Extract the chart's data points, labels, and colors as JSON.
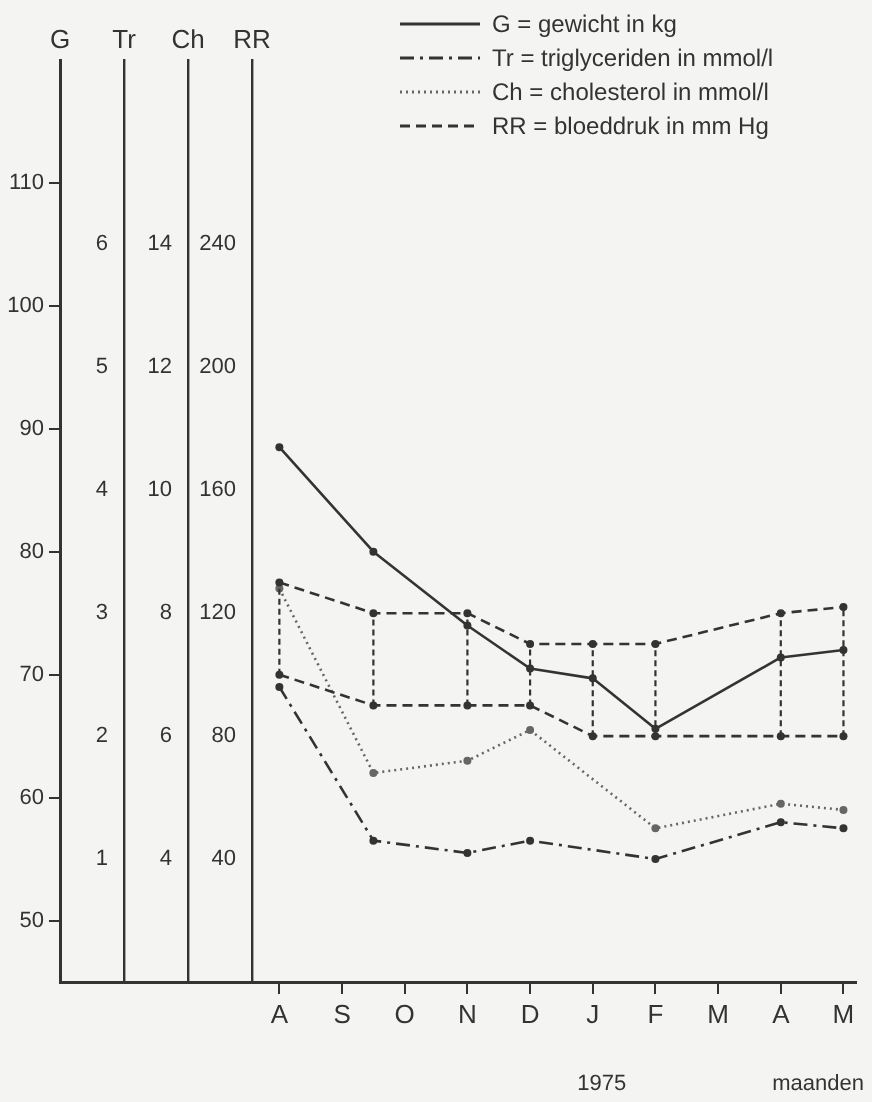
{
  "chart_data": [
    {
      "type": "line",
      "ylabel": "G",
      "y2label": "Tr",
      "y3label": "Ch",
      "xlabel": "maanden",
      "annotations": [
        "1975"
      ],
      "categories": [
        null,
        null,
        null,
        null,
        null,
        null,
        null,
        "A",
        null,
        "S",
        null,
        "O",
        null,
        "N",
        null,
        "D",
        null,
        "J",
        null,
        "F",
        null,
        "M",
        null,
        "A",
        null,
        "M"
      ],
      "ylim": [
        45,
        120
      ],
      "yticks": [
        50,
        60,
        70,
        80,
        90,
        100,
        110
      ],
      "y2lim": [
        0,
        7.5
      ],
      "y2ticks": [
        1,
        2,
        3,
        4,
        5,
        6
      ],
      "y3lim": [
        2,
        17
      ],
      "y3ticks": [
        4,
        6,
        8,
        10,
        12,
        14
      ],
      "legend": "top right",
      "marker": "circle",
      "series": [
        {
          "name": "G = gewicht in kg",
          "color": "#333333",
          "line_style": "solid",
          "values": [
            null,
            null,
            null,
            null,
            null,
            null,
            null,
            88.5,
            null,
            null,
            80,
            null,
            null,
            74,
            null,
            70.5,
            null,
            69.7,
            null,
            65.6,
            null,
            null,
            null,
            71.4,
            null,
            72
          ]
        },
        {
          "name": "Tr = triglyceriden in mmol/l",
          "color": "#333333",
          "line_style": "dashdot",
          "axis": "y2",
          "values": [
            null,
            null,
            null,
            null,
            null,
            null,
            null,
            2.4,
            null,
            null,
            1.15,
            null,
            null,
            1.05,
            null,
            1.15,
            null,
            null,
            null,
            1.0,
            null,
            null,
            null,
            1.3,
            null,
            1.25
          ]
        },
        {
          "name": "Ch = cholesterol in mmol/l",
          "color": "#666666",
          "line_style": "dotted",
          "axis": "y3",
          "values": [
            null,
            null,
            null,
            null,
            null,
            null,
            null,
            8.4,
            null,
            null,
            5.4,
            null,
            null,
            5.6,
            null,
            6.1,
            null,
            null,
            null,
            4.5,
            null,
            null,
            null,
            4.9,
            null,
            4.8
          ]
        }
      ]
    },
    {
      "type": "line",
      "ylabel": "RR",
      "tick_labels": "y",
      "ylim": [
        0,
        300
      ],
      "yticks": [
        40,
        80,
        120,
        160,
        200,
        240
      ],
      "legend": "top right",
      "marker": "circle",
      "series": [
        {
          "name": "RR = bloeddruk in mm Hg",
          "color": "#333333",
          "line_style": "dashed",
          "values": [
            null,
            null,
            null,
            null,
            null,
            null,
            null,
            130,
            null,
            null,
            120,
            null,
            null,
            120,
            null,
            110,
            null,
            110,
            null,
            110,
            null,
            null,
            null,
            120,
            null,
            122
          ],
          "errors": [
            null,
            null,
            null,
            null,
            null,
            null,
            null,
            [
              100,
              130
            ],
            null,
            null,
            [
              90,
              120
            ],
            null,
            null,
            [
              90,
              120
            ],
            null,
            [
              90,
              110
            ],
            null,
            [
              80,
              110
            ],
            null,
            [
              80,
              110
            ],
            null,
            null,
            null,
            [
              80,
              120
            ],
            null,
            [
              80,
              122
            ]
          ]
        },
        {
          "color": "#333333",
          "line_style": "dashed",
          "values": [
            null,
            null,
            null,
            null,
            null,
            null,
            null,
            100,
            null,
            null,
            90,
            null,
            null,
            90,
            null,
            90,
            null,
            80,
            null,
            80,
            null,
            null,
            null,
            80,
            null,
            80
          ]
        }
      ]
    }
  ]
}
